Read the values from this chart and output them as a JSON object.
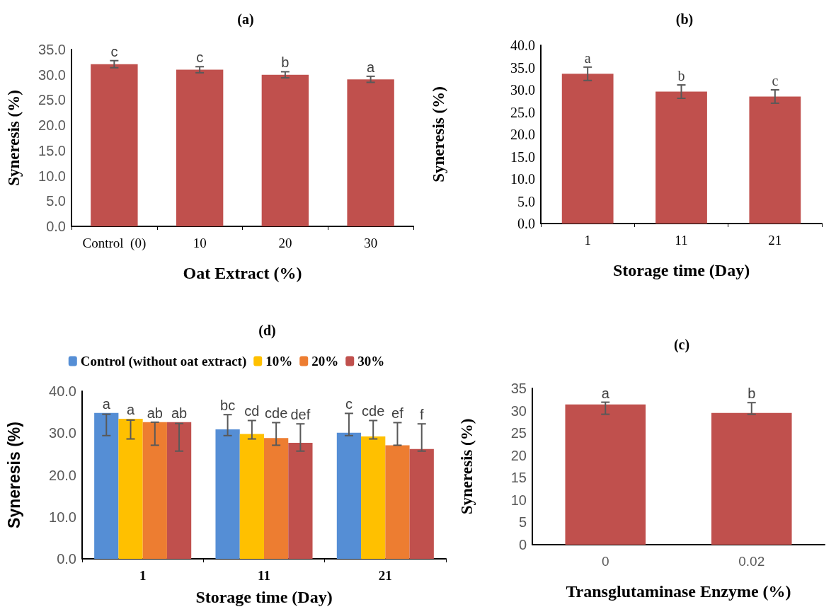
{
  "chart_data": [
    {
      "type": "bar",
      "title": "(a)",
      "xlabel": "Oat Extract (%)",
      "ylabel": "Syneresis (%)",
      "categories": [
        "Control  (0)",
        "10",
        "20",
        "30"
      ],
      "series": [
        {
          "color": "#c0504d",
          "values": [
            32.1,
            31.0,
            30.0,
            29.1
          ],
          "errors": [
            0.7,
            0.6,
            0.6,
            0.6
          ],
          "value_labels": [
            "c",
            "c",
            "b",
            "a"
          ]
        }
      ],
      "ylim": [
        0,
        35
      ],
      "yticks": [
        {
          "value": 0,
          "label": "0.0"
        },
        {
          "value": 5,
          "label": "5.0"
        },
        {
          "value": 10,
          "label": "10.0"
        },
        {
          "value": 15,
          "label": "15.0"
        },
        {
          "value": 20,
          "label": "20.0"
        },
        {
          "value": 25,
          "label": "25.0"
        },
        {
          "value": 30,
          "label": "30.0"
        },
        {
          "value": 35,
          "label": "35.0"
        }
      ],
      "legend": false,
      "grid": false
    },
    {
      "type": "bar",
      "title": "(b)",
      "xlabel": "Storage time (Day)",
      "ylabel": "Syneresis (%)",
      "categories": [
        "1",
        "11",
        "21"
      ],
      "series": [
        {
          "color": "#c0504d",
          "values": [
            33.6,
            29.6,
            28.5
          ],
          "errors": [
            1.5,
            1.5,
            1.5
          ],
          "value_labels": [
            "a",
            "b",
            "c"
          ]
        }
      ],
      "ylim": [
        0,
        40
      ],
      "yticks": [
        {
          "value": 0,
          "label": "0.0"
        },
        {
          "value": 5,
          "label": "5.0"
        },
        {
          "value": 10,
          "label": "10.0"
        },
        {
          "value": 15,
          "label": "15.0"
        },
        {
          "value": 20,
          "label": "20.0"
        },
        {
          "value": 25,
          "label": "25.0"
        },
        {
          "value": 30,
          "label": "30.0"
        },
        {
          "value": 35,
          "label": "35.0"
        },
        {
          "value": 40,
          "label": "40.0"
        }
      ],
      "legend": false,
      "grid": false
    },
    {
      "type": "bar",
      "title": "(d)",
      "xlabel": "Storage time (Day)",
      "ylabel": "Syneresis (%)",
      "categories": [
        "1",
        "11",
        "21"
      ],
      "series": [
        {
          "name": "Control (without oat extract)",
          "color": "#558ed5",
          "values": [
            34.8,
            30.9,
            30.1
          ],
          "errors": [
            [
              29.4,
              34.5
            ],
            [
              29.4,
              34.4
            ],
            [
              29.4,
              34.7
            ]
          ],
          "value_labels": [
            "a",
            "bc",
            "c"
          ]
        },
        {
          "name": "10%",
          "color": "#ffc000",
          "values": [
            33.4,
            29.8,
            29.2
          ],
          "errors": [
            [
              28.6,
              33.1
            ],
            [
              28.6,
              33.0
            ],
            [
              28.6,
              33.0
            ]
          ],
          "value_labels": [
            "a",
            "cd",
            "cde"
          ]
        },
        {
          "name": "20%",
          "color": "#ed7d31",
          "values": [
            32.6,
            28.8,
            27.1
          ],
          "errors": [
            [
              27.1,
              32.6
            ],
            [
              27.1,
              32.5
            ],
            [
              27.1,
              32.5
            ]
          ],
          "value_labels": [
            "ab",
            "cde",
            "ef"
          ]
        },
        {
          "name": "30%",
          "color": "#c0504d",
          "values": [
            32.6,
            27.7,
            26.2
          ],
          "errors": [
            [
              25.7,
              32.3
            ],
            [
              25.7,
              32.2
            ],
            [
              25.7,
              32.2
            ]
          ],
          "value_labels": [
            "ab",
            "def",
            "f"
          ]
        }
      ],
      "ylim": [
        0,
        40
      ],
      "yticks": [
        {
          "value": 0,
          "label": "0.0"
        },
        {
          "value": 10,
          "label": "10.0"
        },
        {
          "value": 20,
          "label": "20.0"
        },
        {
          "value": 30,
          "label": "30.0"
        },
        {
          "value": 40,
          "label": "40.0"
        }
      ],
      "legend": "top",
      "grid": false
    },
    {
      "type": "bar",
      "title": "(c)",
      "xlabel": "Transglutaminase Enzyme (%)",
      "ylabel": "Syneresis (%)",
      "categories": [
        "0",
        "0.02"
      ],
      "series": [
        {
          "color": "#c0504d",
          "values": [
            31.4,
            29.5
          ],
          "errors": [
            [
              29.2,
              31.9
            ],
            [
              29.2,
              31.8
            ]
          ],
          "value_labels": [
            "a",
            "b"
          ]
        }
      ],
      "ylim": [
        0,
        35
      ],
      "yticks": [
        0,
        5,
        10,
        15,
        20,
        25,
        30,
        35
      ],
      "legend": false,
      "grid": false
    }
  ]
}
